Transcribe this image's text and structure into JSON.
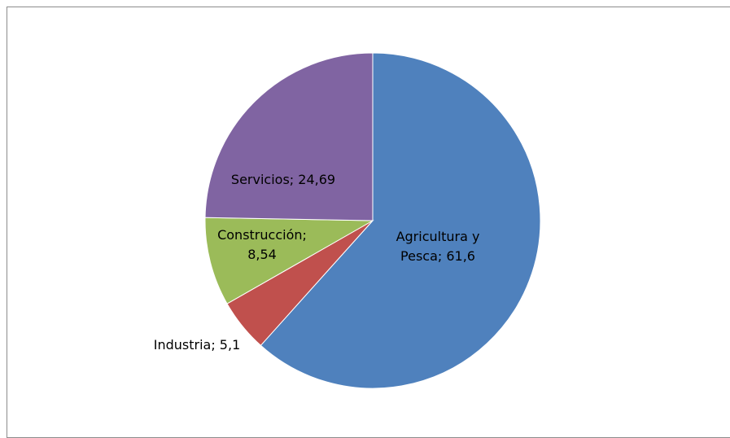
{
  "chart_data": {
    "type": "pie",
    "title": "",
    "categories": [
      "Agricultura y Pesca",
      "Industria",
      "Construcción",
      "Servicios"
    ],
    "values": [
      61.6,
      5.1,
      8.54,
      24.69
    ],
    "colors": [
      "#4f81bd",
      "#c0504d",
      "#9bbb59",
      "#8064a2"
    ],
    "start_angle_deg": 0,
    "direction": "clockwise",
    "labels": [
      {
        "lines": [
          "Agricultura y",
          "Pesca; 61,6"
        ]
      },
      {
        "lines": [
          "Industria; 5,1"
        ]
      },
      {
        "lines": [
          "Construcción;",
          "8,54"
        ]
      },
      {
        "lines": [
          "Servicios; 24,69"
        ]
      }
    ]
  }
}
